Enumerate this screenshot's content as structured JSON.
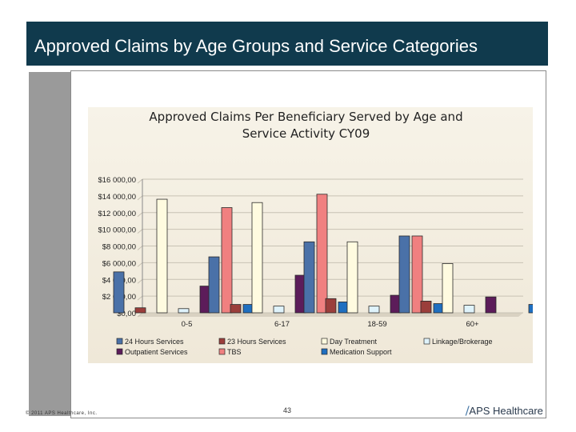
{
  "slide": {
    "title": "Approved Claims by Age Groups and Service Categories",
    "footer_left": "© 2011 APS Healthcare, Inc.",
    "page_number": "43",
    "logo_text": "APS Healthcare",
    "logo_mark": "⧸"
  },
  "colors": {
    "title_bg": "#103a4d",
    "series": [
      "#4a71a8",
      "#9b3e3b",
      "#fffbe0",
      "#dff3fb",
      "#5c1c5a",
      "#f08080",
      "#1f6fc0"
    ]
  },
  "chart_data": {
    "type": "bar",
    "title": "Approved Claims Per Beneficiary Served by Age and Service Activity CY09",
    "title_lines": [
      "Approved Claims Per Beneficiary Served by Age and",
      "Service Activity CY09"
    ],
    "categories": [
      "0-5",
      "6-17",
      "18-59",
      "60+"
    ],
    "ylim": [
      0,
      16000
    ],
    "yticks": [
      "$0,00",
      "$2 000,00",
      "$4 000,00",
      "$6 000,00",
      "$8 000,00",
      "$10 000,00",
      "$12 000,00",
      "$14 000,00",
      "$16 000,00"
    ],
    "grid": true,
    "legend_position": "bottom",
    "series": [
      {
        "name": "24 Hours Services",
        "values": [
          4900,
          6700,
          8500,
          9200
        ]
      },
      {
        "name": "23 Hours Services",
        "values": [
          600,
          1000,
          1700,
          1400
        ]
      },
      {
        "name": "Day Treatment",
        "values": [
          13600,
          13200,
          8500,
          5900
        ]
      },
      {
        "name": "Linkage/Brokerage",
        "values": [
          500,
          800,
          800,
          900
        ]
      },
      {
        "name": "Outpatient Services",
        "values": [
          3200,
          4500,
          2100,
          1900
        ]
      },
      {
        "name": "TBS",
        "values": [
          12600,
          14200,
          9200,
          0
        ]
      },
      {
        "name": "Medication Support",
        "values": [
          1000,
          1300,
          1100,
          1000
        ]
      }
    ]
  }
}
